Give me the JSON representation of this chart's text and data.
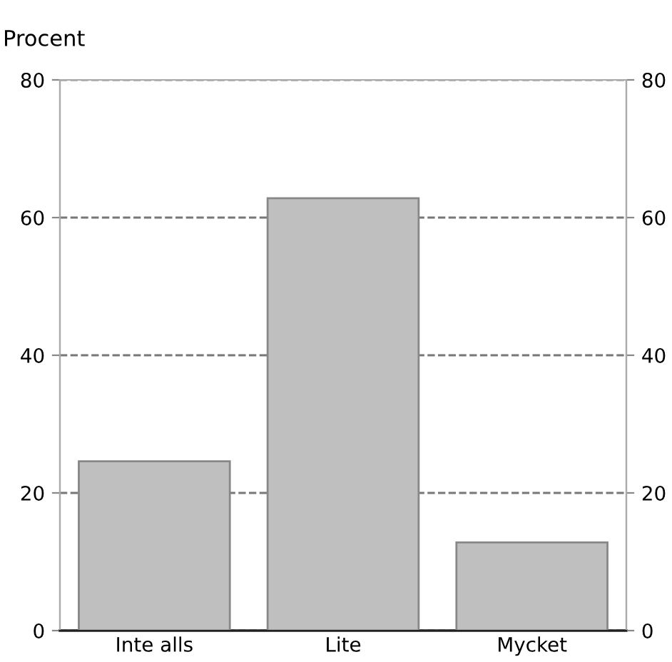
{
  "chart_data": {
    "type": "bar",
    "ylabel": "Procent",
    "categories": [
      "Inte alls",
      "Lite",
      "Mycket"
    ],
    "values": [
      24.6,
      62.8,
      12.8
    ],
    "color": "#bfbfbf",
    "ylim": [
      0,
      80
    ],
    "yticks": [
      0,
      20,
      40,
      60,
      80
    ],
    "y2lim": [
      0,
      80
    ],
    "y2ticks": [
      0,
      20,
      40,
      60,
      80
    ],
    "grid": "y",
    "line_style": "dashed"
  }
}
